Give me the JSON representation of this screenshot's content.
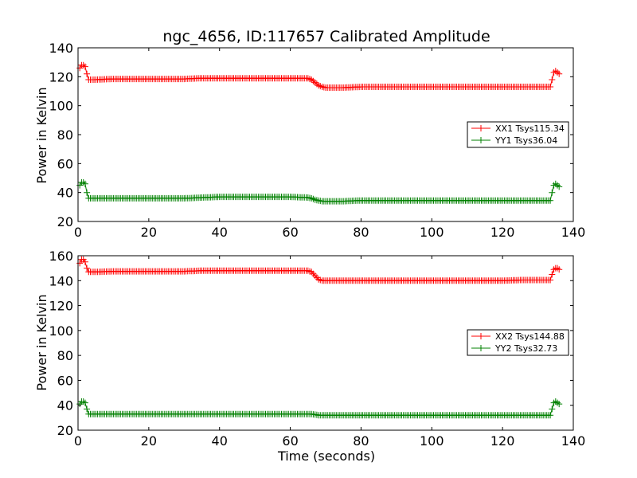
{
  "chart_data": [
    {
      "type": "line",
      "title": "ngc_4656, ID:117657 Calibrated Amplitude",
      "xlabel": "",
      "ylabel": "Power in Kelvin",
      "xlim": [
        0,
        140
      ],
      "ylim": [
        20,
        140
      ],
      "xticks": [
        "0",
        "20",
        "40",
        "60",
        "80",
        "100",
        "120",
        "140"
      ],
      "yticks": [
        "20",
        "40",
        "60",
        "80",
        "100",
        "120",
        "140"
      ],
      "legend_position": "center-right",
      "series": [
        {
          "name": "XX1 Tsys115.34",
          "color": "#ff0000",
          "x": [
            0.5,
            1,
            1.5,
            2,
            2.5,
            3,
            5,
            10,
            20,
            30,
            35,
            40,
            50,
            60,
            65,
            66,
            67,
            68,
            69,
            70,
            75,
            80,
            90,
            100,
            110,
            120,
            125,
            130,
            133.5,
            134,
            134.5,
            135,
            135.5,
            136
          ],
          "y": [
            126,
            128,
            128,
            127,
            122,
            118,
            118,
            118.5,
            118.5,
            118.5,
            119,
            119,
            119,
            119,
            119,
            118,
            116,
            114,
            113,
            112.5,
            112.5,
            113,
            113,
            113,
            113,
            113,
            113,
            113,
            113,
            118,
            123,
            124,
            123,
            122
          ]
        },
        {
          "name": "YY1 Tsys36.04",
          "color": "#008000",
          "x": [
            0.5,
            1,
            1.5,
            2,
            2.5,
            3,
            5,
            10,
            20,
            30,
            35,
            40,
            50,
            60,
            65,
            66,
            67,
            68,
            69,
            70,
            75,
            80,
            90,
            100,
            110,
            120,
            125,
            130,
            133.5,
            134,
            134.5,
            135,
            135.5,
            136
          ],
          "y": [
            45,
            47,
            47,
            46,
            40,
            36,
            36,
            36,
            36,
            36,
            36.5,
            37,
            37,
            37,
            36.5,
            36,
            35,
            34.5,
            34,
            34,
            34,
            34.5,
            34.5,
            34.5,
            34.5,
            34.5,
            34.5,
            34.5,
            34.5,
            40,
            45,
            46,
            45,
            44
          ]
        }
      ]
    },
    {
      "type": "line",
      "title": "",
      "xlabel": "Time (seconds)",
      "ylabel": "Power in Kelvin",
      "xlim": [
        0,
        140
      ],
      "ylim": [
        20,
        160
      ],
      "xticks": [
        "0",
        "20",
        "40",
        "60",
        "80",
        "100",
        "120",
        "140"
      ],
      "yticks": [
        "20",
        "40",
        "60",
        "80",
        "100",
        "120",
        "140",
        "160"
      ],
      "legend_position": "center-right",
      "series": [
        {
          "name": "XX2 Tsys144.88",
          "color": "#ff0000",
          "x": [
            0.5,
            1,
            1.5,
            2,
            2.5,
            3,
            5,
            10,
            20,
            30,
            35,
            40,
            50,
            60,
            65,
            66,
            67,
            68,
            69,
            70,
            75,
            80,
            90,
            100,
            110,
            120,
            125,
            130,
            133.5,
            134,
            134.5,
            135,
            135.5,
            136
          ],
          "y": [
            154,
            157,
            157,
            155,
            150,
            147,
            147,
            147.5,
            147.5,
            147.5,
            148,
            148,
            148,
            148,
            148,
            147,
            144,
            141,
            140,
            140,
            140,
            140,
            140,
            140,
            140,
            140,
            140.5,
            140.5,
            140.5,
            145,
            149,
            150,
            150,
            149
          ]
        },
        {
          "name": "YY2 Tsys32.73",
          "color": "#008000",
          "x": [
            0.5,
            1,
            1.5,
            2,
            2.5,
            3,
            5,
            10,
            20,
            30,
            35,
            40,
            50,
            60,
            65,
            66,
            67,
            68,
            69,
            70,
            75,
            80,
            90,
            100,
            110,
            120,
            125,
            130,
            133.5,
            134,
            134.5,
            135,
            135.5,
            136
          ],
          "y": [
            41,
            43,
            43,
            42,
            37,
            33,
            33,
            33,
            33,
            33,
            33,
            33,
            33,
            33,
            33,
            33,
            32.5,
            32,
            32,
            32,
            32,
            32,
            32,
            32,
            32,
            32,
            32,
            32,
            32,
            37,
            42,
            43,
            42,
            41
          ]
        }
      ]
    }
  ]
}
